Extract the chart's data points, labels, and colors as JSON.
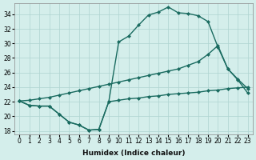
{
  "xlabel": "Humidex (Indice chaleur)",
  "bg_color": "#d4eeeb",
  "grid_color": "#aed4d0",
  "line_color": "#1a6b60",
  "xlim": [
    -0.5,
    23.5
  ],
  "ylim": [
    17.5,
    35.5
  ],
  "yticks": [
    18,
    20,
    22,
    24,
    26,
    28,
    30,
    32,
    34
  ],
  "xticks": [
    0,
    1,
    2,
    3,
    4,
    5,
    6,
    7,
    8,
    9,
    10,
    11,
    12,
    13,
    14,
    15,
    16,
    17,
    18,
    19,
    20,
    21,
    22,
    23
  ],
  "line1_x": [
    0,
    1,
    2,
    3,
    4,
    5,
    6,
    7,
    8,
    9,
    10,
    11,
    12,
    13,
    14,
    15,
    16,
    17,
    18,
    19,
    20,
    21,
    22,
    23
  ],
  "line1_y": [
    22.1,
    21.5,
    21.4,
    21.4,
    20.3,
    19.2,
    18.8,
    18.1,
    18.2,
    22.0,
    22.2,
    22.4,
    22.5,
    22.7,
    22.8,
    23.0,
    23.1,
    23.2,
    23.3,
    23.5,
    23.6,
    23.8,
    23.9,
    24.0
  ],
  "line2_x": [
    0,
    1,
    2,
    3,
    4,
    5,
    6,
    7,
    8,
    9,
    10,
    11,
    12,
    13,
    14,
    15,
    16,
    17,
    18,
    19,
    20,
    21,
    22,
    23
  ],
  "line2_y": [
    22.1,
    21.5,
    21.4,
    21.4,
    20.3,
    19.2,
    18.8,
    18.1,
    18.2,
    22.0,
    30.2,
    31.0,
    32.5,
    33.9,
    34.3,
    35.0,
    34.2,
    34.1,
    33.8,
    33.0,
    29.5,
    26.5,
    25.0,
    23.2
  ],
  "line3_x": [
    0,
    1,
    2,
    3,
    4,
    5,
    6,
    7,
    8,
    9,
    10,
    11,
    12,
    13,
    14,
    15,
    16,
    17,
    18,
    19,
    20,
    21,
    22,
    23
  ],
  "line3_y": [
    22.1,
    22.2,
    22.4,
    22.6,
    22.9,
    23.2,
    23.5,
    23.8,
    24.1,
    24.4,
    24.7,
    25.0,
    25.3,
    25.6,
    25.9,
    26.2,
    26.5,
    27.0,
    27.5,
    28.5,
    29.7,
    26.5,
    25.1,
    23.8
  ],
  "marker": "D",
  "marker_size": 2.5,
  "linewidth": 1.0
}
